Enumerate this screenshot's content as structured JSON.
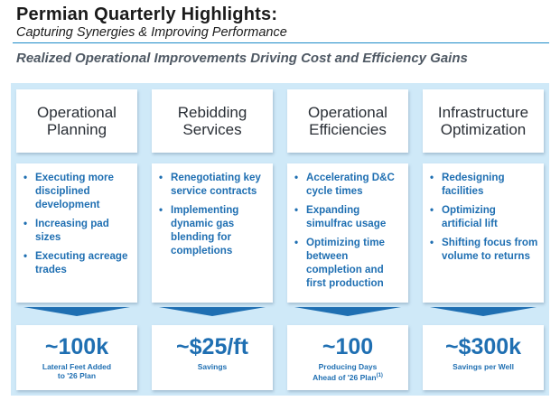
{
  "header": {
    "title": "Permian Quarterly Highlights:",
    "subtitle": "Capturing Synergies & Improving Performance",
    "headline": "Realized Operational Improvements Driving Cost and Efficiency Gains"
  },
  "columns": [
    {
      "heading": "Operational\nPlanning",
      "bullets": [
        "Executing more disciplined development",
        "Increasing pad sizes",
        "Executing acreage trades"
      ],
      "value": "~100k",
      "caption": "Lateral Feet Added\nto '26 Plan",
      "footnote": ""
    },
    {
      "heading": "Rebidding\nServices",
      "bullets": [
        "Renegotiating key service contracts",
        "Implementing dynamic gas blending for completions"
      ],
      "value": "~$25/ft",
      "caption": "Savings",
      "footnote": ""
    },
    {
      "heading": "Operational\nEfficiencies",
      "bullets": [
        "Accelerating D&C cycle times",
        "Expanding simulfrac usage",
        "Optimizing time between completion and first production"
      ],
      "value": "~100",
      "caption": "Producing Days\nAhead of '26 Plan",
      "footnote": "(1)"
    },
    {
      "heading": "Infrastructure\nOptimization",
      "bullets": [
        "Redesigning facilities",
        "Optimizing artificial lift",
        "Shifting focus from volume to returns"
      ],
      "value": "~$300k",
      "caption": "Savings per Well",
      "footnote": ""
    }
  ]
}
